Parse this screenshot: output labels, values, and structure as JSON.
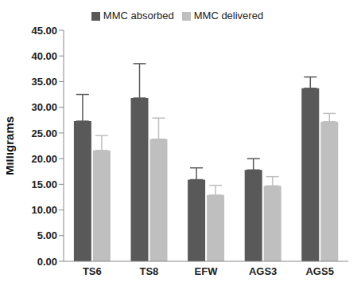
{
  "chart_data": {
    "type": "bar",
    "y_label": "Milligrams",
    "categories": [
      "TS6",
      "TS8",
      "EFW",
      "AGS3",
      "AGS5"
    ],
    "series": [
      {
        "name": "MMC absorbed",
        "color": "#595959",
        "values": [
          27.3,
          31.8,
          15.9,
          17.8,
          33.7
        ],
        "errors": [
          5.2,
          6.7,
          2.3,
          2.2,
          2.2
        ]
      },
      {
        "name": "MMC delivered",
        "color": "#bfbfbf",
        "values": [
          21.6,
          23.8,
          12.9,
          14.7,
          27.2
        ],
        "errors": [
          2.9,
          4.1,
          1.9,
          1.8,
          1.6
        ]
      }
    ],
    "ylim": [
      0,
      45
    ],
    "yticks": [
      {
        "value": 0,
        "label": "0.00"
      },
      {
        "value": 5,
        "label": "5.00"
      },
      {
        "value": 10,
        "label": "10.00"
      },
      {
        "value": 15,
        "label": "15.00"
      },
      {
        "value": 20,
        "label": "20.00"
      },
      {
        "value": 25,
        "label": "25.00"
      },
      {
        "value": 30,
        "label": "30.00"
      },
      {
        "value": 35,
        "label": "35.00"
      },
      {
        "value": 40,
        "label": "40.00"
      },
      {
        "value": 45,
        "label": "45.00"
      }
    ],
    "grid": false,
    "legend": "top"
  }
}
